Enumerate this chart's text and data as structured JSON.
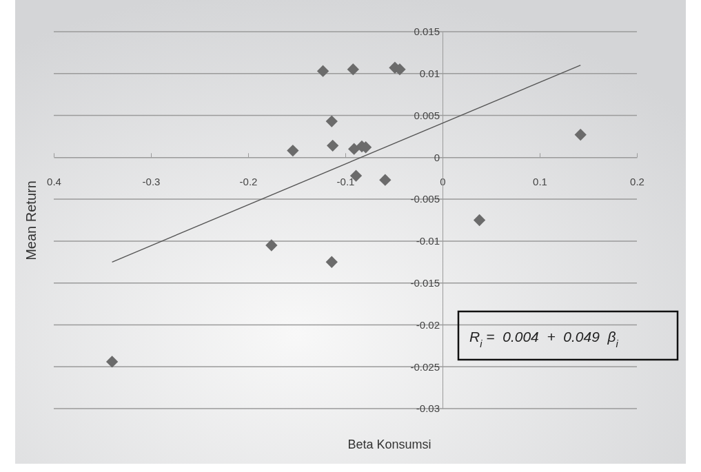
{
  "chart_data": {
    "type": "scatter",
    "xlabel": "Beta Konsumsi",
    "ylabel": "Mean Return",
    "xlim": [
      -0.4,
      0.2
    ],
    "xticks": [
      {
        "value": -0.4,
        "label": "0.4"
      },
      -0.3,
      -0.2,
      -0.1,
      0,
      0.1,
      0.2
    ],
    "ylim": [
      -0.03,
      0.015
    ],
    "yticks": [
      -0.03,
      -0.025,
      -0.02,
      -0.015,
      -0.01,
      -0.005,
      0,
      0.005,
      0.01,
      0.015
    ],
    "grid": "y",
    "series": [
      {
        "marker": "diamond",
        "color": "#6b6b6b",
        "x": [
          -0.123,
          -0.092,
          -0.049,
          -0.044,
          -0.114,
          -0.113,
          -0.154,
          -0.091,
          -0.083,
          -0.079,
          -0.089,
          -0.059,
          0.038,
          0.142,
          -0.176,
          -0.114,
          -0.34
        ],
        "values": [
          0.0103,
          0.0105,
          0.0107,
          0.0105,
          0.0043,
          0.0014,
          0.0008,
          0.001,
          0.0013,
          0.0012,
          -0.0022,
          -0.0027,
          -0.0075,
          0.0027,
          -0.0105,
          -0.0125,
          -0.0244
        ]
      },
      {
        "type": "line",
        "marker": "none",
        "line_style": "solid",
        "color": "#555555",
        "x": [
          -0.34,
          0.142
        ],
        "values": [
          -0.0125,
          0.011
        ]
      }
    ],
    "annotations": [
      "R$_{i}$ =  0.004  +  0.049  β$_{i}$"
    ]
  }
}
